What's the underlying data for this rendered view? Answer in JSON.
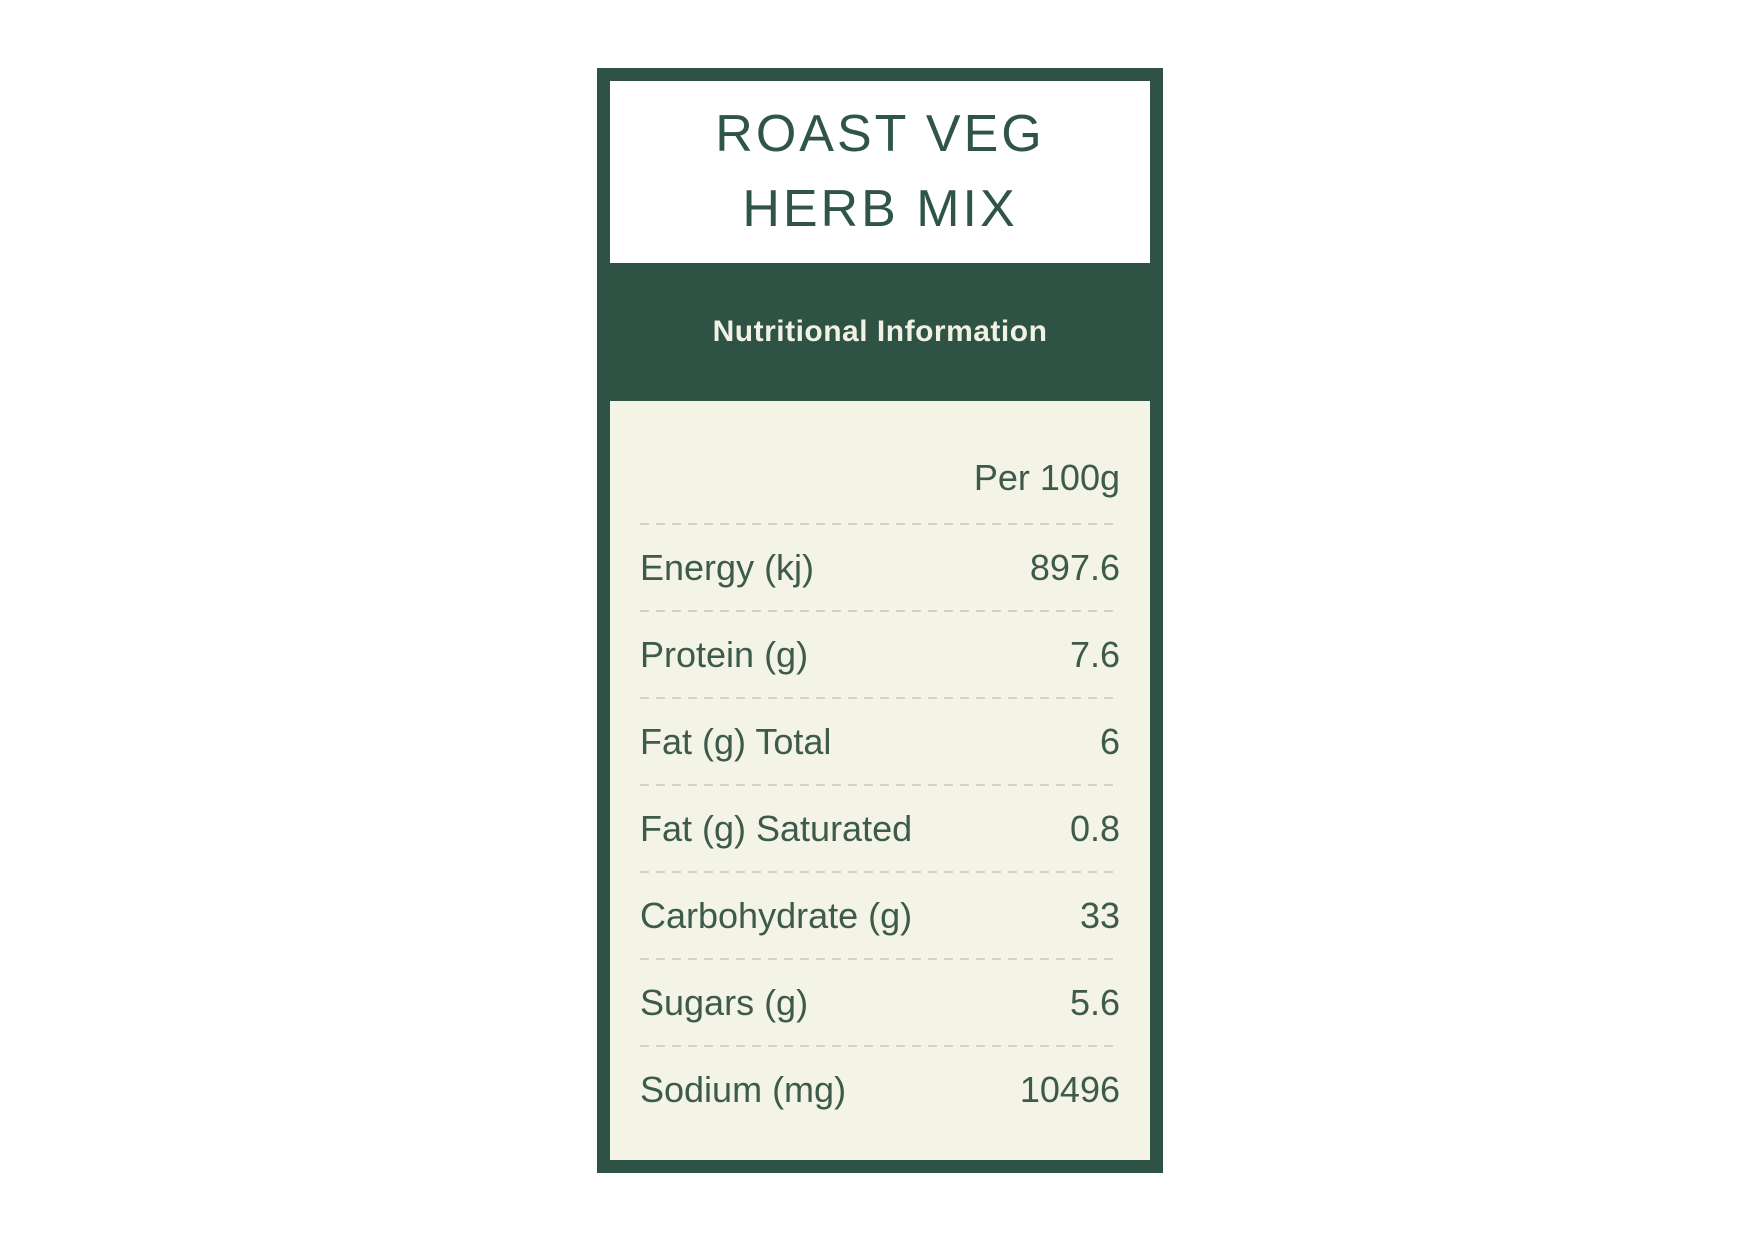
{
  "label": {
    "title_line1": "ROAST VEG",
    "title_line2": "HERB MIX",
    "section_heading": "Nutritional Information",
    "column_header": "Per 100g",
    "rows": [
      {
        "name": "Energy (kj)",
        "value": "897.6"
      },
      {
        "name": "Protein (g)",
        "value": "7.6"
      },
      {
        "name": "Fat (g) Total",
        "value": "6"
      },
      {
        "name": "Fat (g) Saturated",
        "value": "0.8"
      },
      {
        "name": "Carbohydrate (g)",
        "value": "33"
      },
      {
        "name": "Sugars (g)",
        "value": "5.6"
      },
      {
        "name": "Sodium (mg)",
        "value": "10496"
      }
    ],
    "colors": {
      "green_dark": "#2e5345",
      "body_cream": "#f3f4e5",
      "band_text_cream": "#f1f2e3",
      "table_text_green": "#3d5a4b",
      "divider_gray": "#d2d3c8",
      "page_background": "#ffffff"
    }
  }
}
